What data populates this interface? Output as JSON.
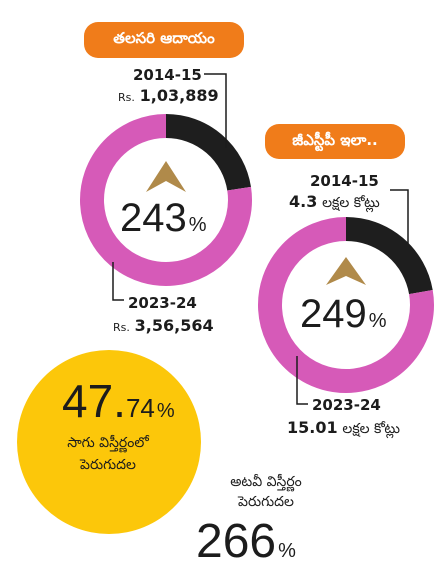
{
  "income": {
    "title": "తలసరి ఆదాయం",
    "start_year": "2014-15",
    "start_rs": "Rs.",
    "start_value": "1,03,889",
    "end_year": "2023-24",
    "end_rs": "Rs.",
    "end_value": "3,56,564",
    "growth_value": "243",
    "growth_unit": "%"
  },
  "gst": {
    "title": "జీఎస్టీపీ ఇలా..",
    "start_year": "2014-15",
    "start_value": "4.3",
    "start_unit": "లక్షల కోట్లు",
    "end_year": "2023-24",
    "end_value": "15.01",
    "end_unit": "లక్షల కోట్లు",
    "growth_value": "249",
    "growth_unit": "%"
  },
  "cultivation": {
    "value_int": "47.",
    "value_dec": "74",
    "unit": "%",
    "label_line1": "సాగు విస్తీర్ణంలో",
    "label_line2": "పెరుగుదల"
  },
  "forest": {
    "label_line1": "అటవీ విస్తీర్ణం",
    "label_line2": "పెరుగుదల",
    "value": "266",
    "unit": "%"
  },
  "colors": {
    "orange": "#f07c1a",
    "pink": "#d65ab8",
    "dark": "#1e1e1e",
    "gold": "#b08a4a",
    "yellow": "#fcc70a"
  },
  "chart_data": [
    {
      "type": "pie",
      "title": "తలసరి ఆదాయం",
      "categories": [
        "2014-15",
        "2023-24"
      ],
      "values": [
        103889,
        356564
      ],
      "growth_percent": 243
    },
    {
      "type": "pie",
      "title": "జీఎస్టీపీ ఇలా..",
      "categories": [
        "2014-15",
        "2023-24"
      ],
      "values": [
        4.3,
        15.01
      ],
      "unit": "లక్షల కోట్లు",
      "growth_percent": 249
    }
  ]
}
